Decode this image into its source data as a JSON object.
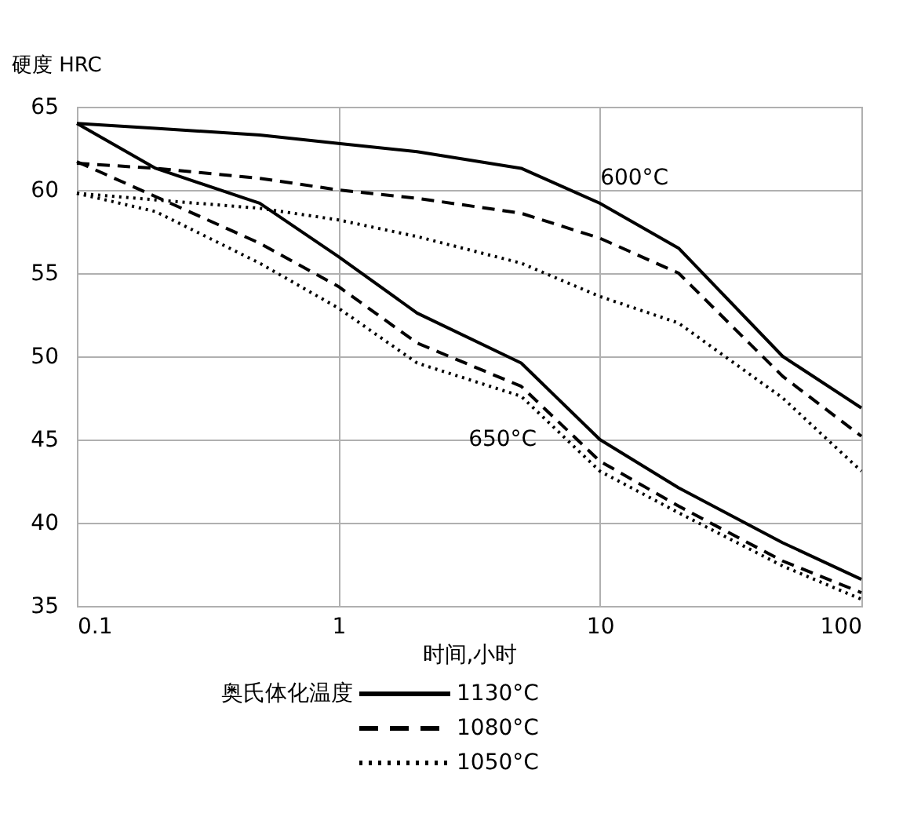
{
  "chart_data": {
    "type": "line",
    "xlabel": "时间,小时",
    "ylabel": "硬度 HRC",
    "legend_title": "奥氏体化温度",
    "x": [
      0.1,
      0.2,
      0.5,
      1,
      2,
      5,
      10,
      20,
      50,
      100
    ],
    "series": [
      {
        "name": "1130°C",
        "color": "#000000",
        "line_style": "solid",
        "values": [
          64.0,
          63.7,
          63.3,
          62.8,
          62.3,
          61.3,
          59.2,
          56.5,
          50.0,
          46.9
        ]
      },
      {
        "name": "1080°C",
        "color": "#000000",
        "line_style": "dashed",
        "values": [
          61.6,
          61.3,
          60.7,
          60.0,
          59.5,
          58.6,
          57.1,
          55.0,
          48.8,
          45.2
        ]
      },
      {
        "name": "1050°C",
        "color": "#000000",
        "line_style": "dotted",
        "values": [
          59.8,
          59.4,
          58.9,
          58.2,
          57.2,
          55.6,
          53.6,
          52.0,
          47.5,
          43.1
        ]
      },
      {
        "color": "#000000",
        "line_style": "solid",
        "values": [
          64.0,
          61.3,
          59.2,
          56.0,
          52.6,
          49.6,
          45.0,
          42.1,
          38.8,
          36.6
        ]
      },
      {
        "color": "#000000",
        "line_style": "dashed",
        "values": [
          61.7,
          59.6,
          56.8,
          54.2,
          50.8,
          48.2,
          43.7,
          41.0,
          37.7,
          35.8
        ]
      },
      {
        "color": "#000000",
        "line_style": "dotted",
        "values": [
          59.8,
          58.7,
          55.6,
          52.9,
          49.6,
          47.6,
          43.1,
          40.6,
          37.4,
          35.4
        ]
      }
    ],
    "annotations": [
      "600°C",
      "650°C"
    ],
    "xlim": [
      0.1,
      100
    ],
    "xticks": [
      0.1,
      1,
      10,
      100
    ],
    "log": "x",
    "ylim": [
      35,
      65
    ],
    "yticks": [
      35,
      40,
      45,
      50,
      55,
      60,
      65
    ],
    "grid": true,
    "legend": "bottom",
    "marker": "none"
  }
}
